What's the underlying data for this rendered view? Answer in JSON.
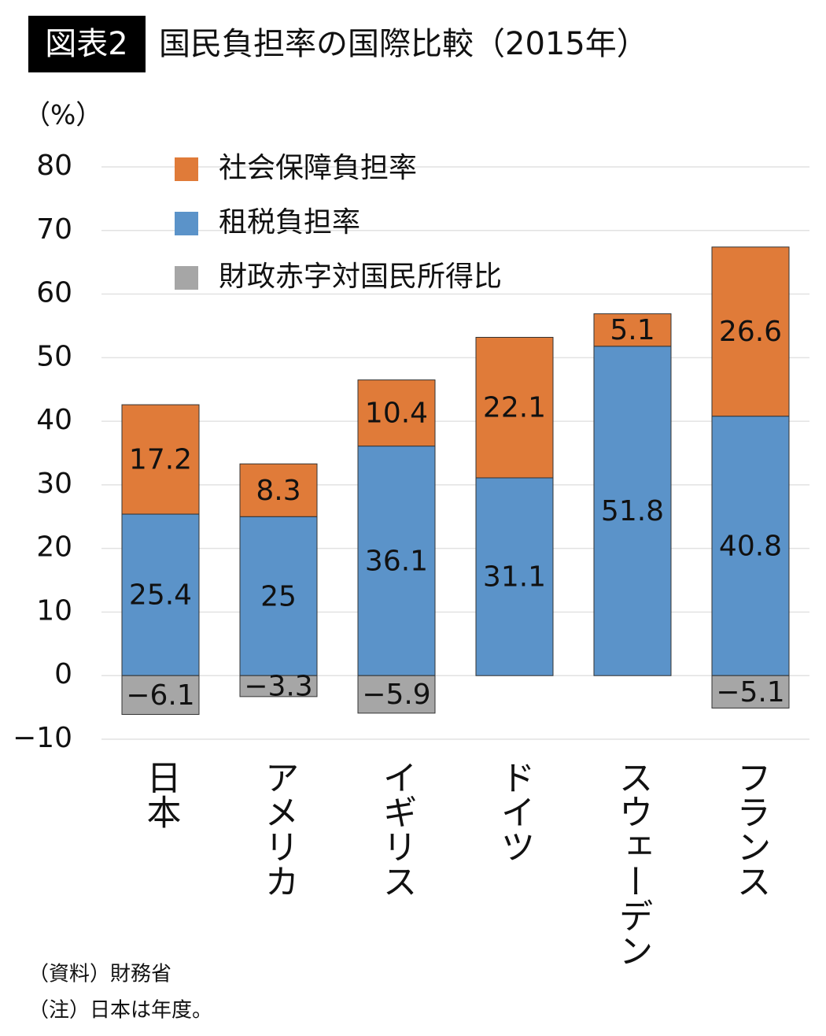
{
  "chart_data": {
    "type": "stacked_bar",
    "figure_label": "図表2",
    "title": "国民負担率の国際比較（2015年）",
    "y_label": "（%）",
    "categories": [
      "日本",
      "アメリカ",
      "イギリス",
      "ドイツ",
      "スウェーデン",
      "フランス"
    ],
    "series": [
      {
        "name": "社会保障負担率",
        "color": "#e07b39",
        "values": [
          17.2,
          8.3,
          10.4,
          22.1,
          5.1,
          26.6
        ]
      },
      {
        "name": "租税負担率",
        "color": "#5b93c9",
        "values": [
          25.4,
          25,
          36.1,
          31.1,
          51.8,
          40.8
        ]
      },
      {
        "name": "財政赤字対国民所得比",
        "color": "#a6a6a6",
        "values": [
          -6.1,
          -3.3,
          -5.9,
          null,
          null,
          -5.1
        ],
        "value_labels": [
          "−6.1",
          "−3.3",
          "−5.9",
          null,
          null,
          "−5.1"
        ]
      }
    ],
    "ylim": [
      -10,
      80
    ],
    "yticks": [
      {
        "value": -10,
        "label": "−10"
      },
      0,
      10,
      20,
      30,
      40,
      50,
      60,
      70,
      80
    ],
    "grid": true,
    "notes": [
      "（資料）財務省",
      "（注）日本は年度。"
    ]
  }
}
